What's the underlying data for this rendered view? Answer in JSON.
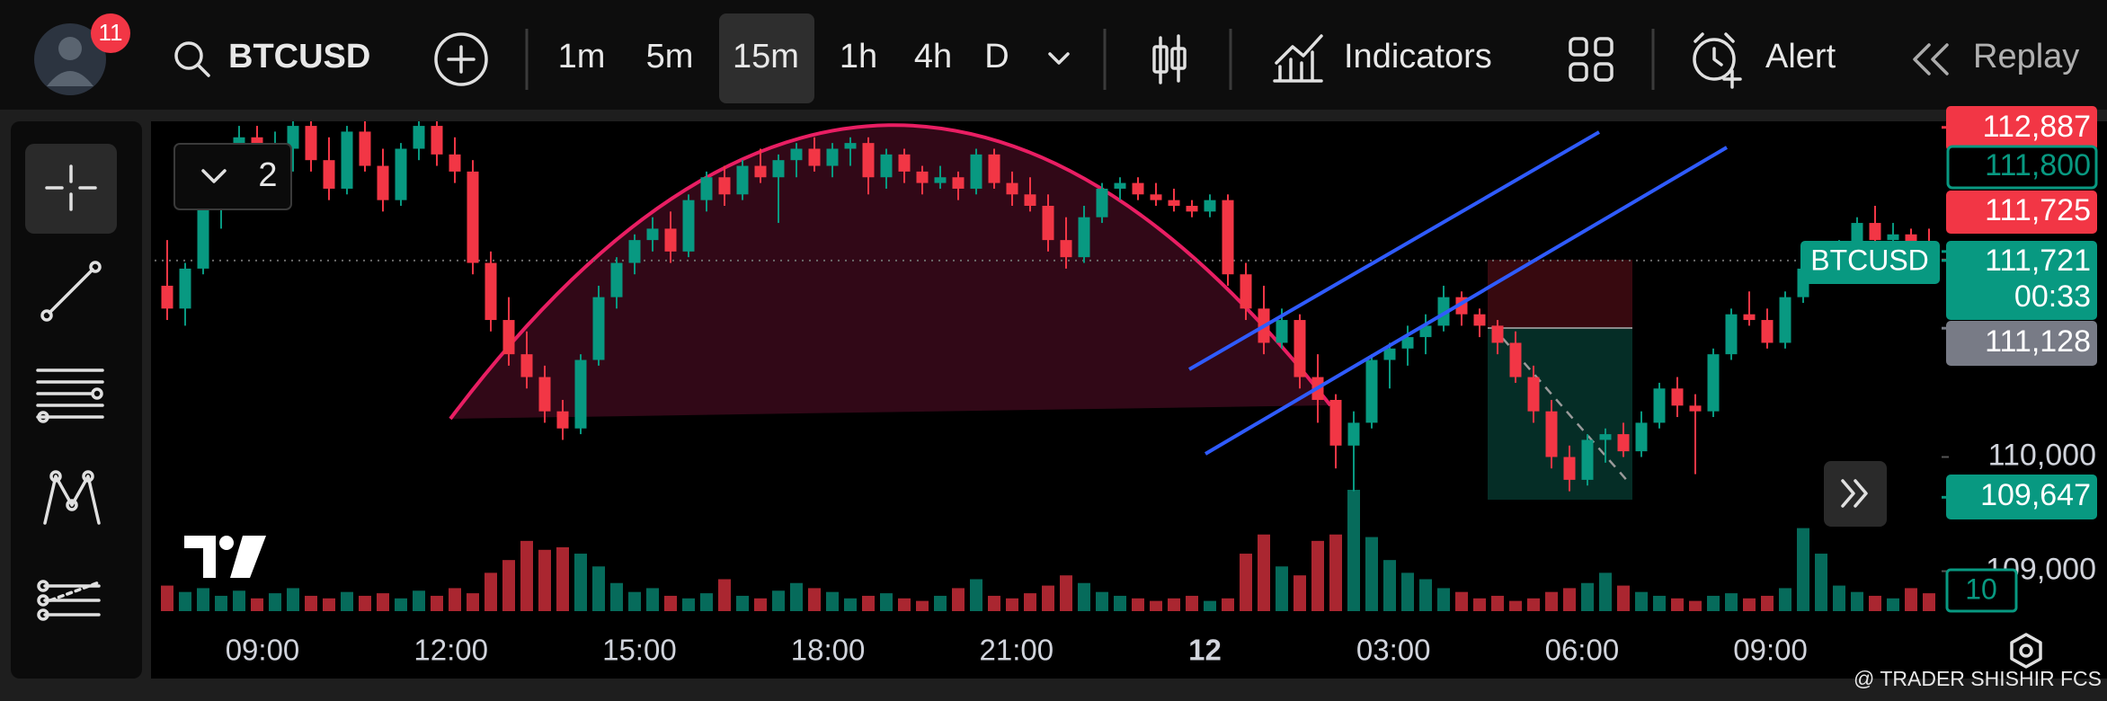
{
  "header": {
    "badge": "11",
    "symbol": "BTCUSD",
    "intervals": [
      "1m",
      "5m",
      "15m",
      "1h",
      "4h",
      "D"
    ],
    "selected_interval": "15m",
    "indicators": "Indicators",
    "alert": "Alert",
    "replay": "Replay"
  },
  "overlay": {
    "legend_count": "2"
  },
  "chart_data": {
    "type": "candlestick",
    "symbol_tag": "BTCUSD",
    "countdown": "00:33",
    "volume_tag": "10",
    "colors": {
      "up": "#089981",
      "down": "#f23645"
    },
    "ylim": [
      108650,
      112940
    ],
    "yticks": [
      {
        "value": 110000,
        "label": "110,000"
      },
      {
        "value": 109000,
        "label": "109,000"
      }
    ],
    "x_labels": [
      "09:00",
      "12:00",
      "15:00",
      "18:00",
      "21:00",
      "12",
      "03:00",
      "06:00",
      "09:00"
    ],
    "price_tags": [
      {
        "value": 112887,
        "label": "112,887",
        "color": "#f23645"
      },
      {
        "value": 111800,
        "label": "111,800",
        "color": "#089981"
      },
      {
        "value": 111725,
        "label": "111,725",
        "color": "#f23645"
      },
      {
        "value": 111721,
        "label": "111,721",
        "color": "#089981"
      },
      {
        "value": 111128,
        "label": "111,128",
        "color": "#787b86"
      },
      {
        "value": 109647,
        "label": "109,647",
        "color": "#089981"
      }
    ],
    "candles": [
      [
        111500,
        111900,
        111200,
        111300
      ],
      [
        111300,
        111700,
        111150,
        111650
      ],
      [
        111650,
        112300,
        111600,
        112200
      ],
      [
        112200,
        112600,
        112000,
        112400
      ],
      [
        112400,
        112900,
        112300,
        112800
      ],
      [
        112800,
        112900,
        112450,
        112550
      ],
      [
        112550,
        112850,
        112300,
        112700
      ],
      [
        112700,
        113000,
        112500,
        112900
      ],
      [
        112900,
        113000,
        112500,
        112600
      ],
      [
        112600,
        112800,
        112250,
        112350
      ],
      [
        112350,
        112900,
        112300,
        112850
      ],
      [
        112850,
        112950,
        112500,
        112550
      ],
      [
        112550,
        112700,
        112150,
        112250
      ],
      [
        112250,
        112750,
        112200,
        112700
      ],
      [
        112700,
        113000,
        112600,
        112900
      ],
      [
        112900,
        112950,
        112550,
        112650
      ],
      [
        112650,
        112800,
        112400,
        112500
      ],
      [
        112500,
        112600,
        111600,
        111700
      ],
      [
        111700,
        111800,
        111100,
        111200
      ],
      [
        111200,
        111400,
        110800,
        110900
      ],
      [
        110900,
        111100,
        110600,
        110700
      ],
      [
        110700,
        110800,
        110300,
        110400
      ],
      [
        110400,
        110500,
        110150,
        110250
      ],
      [
        110250,
        110900,
        110200,
        110850
      ],
      [
        110850,
        111500,
        110800,
        111400
      ],
      [
        111400,
        111750,
        111300,
        111700
      ],
      [
        111700,
        111950,
        111600,
        111900
      ],
      [
        111900,
        112100,
        111800,
        112000
      ],
      [
        112000,
        112150,
        111700,
        111800
      ],
      [
        111800,
        112300,
        111750,
        112250
      ],
      [
        112250,
        112500,
        112150,
        112450
      ],
      [
        112450,
        112550,
        112200,
        112300
      ],
      [
        112300,
        112600,
        112250,
        112550
      ],
      [
        112550,
        112700,
        112400,
        112450
      ],
      [
        112450,
        112650,
        112050,
        112600
      ],
      [
        112600,
        112750,
        112450,
        112700
      ],
      [
        112700,
        112800,
        112500,
        112550
      ],
      [
        112550,
        112750,
        112450,
        112700
      ],
      [
        112700,
        112800,
        112550,
        112750
      ],
      [
        112750,
        112800,
        112300,
        112450
      ],
      [
        112450,
        112700,
        112350,
        112650
      ],
      [
        112650,
        112700,
        112400,
        112500
      ],
      [
        112500,
        112550,
        112300,
        112400
      ],
      [
        112400,
        112550,
        112350,
        112450
      ],
      [
        112450,
        112500,
        112250,
        112350
      ],
      [
        112350,
        112700,
        112300,
        112650
      ],
      [
        112650,
        112700,
        112350,
        112400
      ],
      [
        112400,
        112500,
        112200,
        112300
      ],
      [
        112300,
        112450,
        112150,
        112200
      ],
      [
        112200,
        112300,
        111800,
        111900
      ],
      [
        111900,
        112100,
        111650,
        111750
      ],
      [
        111750,
        112200,
        111700,
        112100
      ],
      [
        112100,
        112400,
        112050,
        112350
      ],
      [
        112350,
        112450,
        112250,
        112400
      ],
      [
        112400,
        112450,
        112250,
        112300
      ],
      [
        112300,
        112400,
        112200,
        112250
      ],
      [
        112250,
        112350,
        112150,
        112200
      ],
      [
        112200,
        112250,
        112100,
        112150
      ],
      [
        112150,
        112300,
        112100,
        112250
      ],
      [
        112250,
        112300,
        111500,
        111600
      ],
      [
        111600,
        111700,
        111200,
        111300
      ],
      [
        111300,
        111500,
        110900,
        111000
      ],
      [
        111000,
        111300,
        110950,
        111200
      ],
      [
        111200,
        111250,
        110600,
        110700
      ],
      [
        110700,
        110900,
        110300,
        110500
      ],
      [
        110500,
        110550,
        109900,
        110100
      ],
      [
        110100,
        110400,
        109700,
        110300
      ],
      [
        110300,
        110900,
        110250,
        110850
      ],
      [
        110850,
        111000,
        110600,
        110950
      ],
      [
        110950,
        111150,
        110800,
        111050
      ],
      [
        111050,
        111250,
        110900,
        111150
      ],
      [
        111150,
        111500,
        111100,
        111400
      ],
      [
        111400,
        111450,
        111150,
        111250
      ],
      [
        111250,
        111300,
        111050,
        111150
      ],
      [
        111150,
        111200,
        110900,
        111000
      ],
      [
        111000,
        111100,
        110650,
        110700
      ],
      [
        110700,
        110800,
        110300,
        110400
      ],
      [
        110400,
        110500,
        109900,
        110000
      ],
      [
        110000,
        110100,
        109700,
        109800
      ],
      [
        109800,
        110200,
        109750,
        110150
      ],
      [
        110150,
        110250,
        109950,
        110200
      ],
      [
        110200,
        110300,
        110000,
        110050
      ],
      [
        110050,
        110400,
        110000,
        110300
      ],
      [
        110300,
        110650,
        110250,
        110600
      ],
      [
        110600,
        110700,
        110350,
        110450
      ],
      [
        110450,
        110550,
        109850,
        110400
      ],
      [
        110400,
        110950,
        110350,
        110900
      ],
      [
        110900,
        111300,
        110850,
        111250
      ],
      [
        111250,
        111450,
        111150,
        111200
      ],
      [
        111200,
        111300,
        110950,
        111000
      ],
      [
        111000,
        111450,
        110950,
        111400
      ],
      [
        111400,
        111700,
        111350,
        111650
      ],
      [
        111650,
        111850,
        111600,
        111750
      ],
      [
        111750,
        111900,
        111650,
        111850
      ],
      [
        111850,
        112100,
        111800,
        112050
      ],
      [
        112050,
        112200,
        111850,
        111900
      ],
      [
        111900,
        112050,
        111750,
        111950
      ],
      [
        111950,
        112000,
        111750,
        111850
      ],
      [
        111850,
        112000,
        111650,
        111721
      ]
    ],
    "volumes": [
      20,
      15,
      18,
      12,
      16,
      10,
      14,
      18,
      12,
      10,
      15,
      12,
      14,
      10,
      16,
      12,
      18,
      14,
      30,
      40,
      55,
      48,
      50,
      45,
      35,
      22,
      15,
      18,
      12,
      10,
      14,
      25,
      12,
      10,
      16,
      22,
      18,
      15,
      10,
      12,
      14,
      10,
      8,
      12,
      18,
      25,
      12,
      10,
      14,
      20,
      28,
      22,
      15,
      12,
      10,
      8,
      10,
      12,
      8,
      10,
      45,
      60,
      35,
      28,
      55,
      60,
      95,
      58,
      40,
      30,
      25,
      18,
      15,
      10,
      12,
      8,
      10,
      15,
      18,
      22,
      30,
      20,
      15,
      12,
      10,
      8,
      12,
      14,
      10,
      12,
      18,
      65,
      45,
      20,
      15,
      12,
      10,
      18,
      14
    ]
  },
  "watermark": "@ TRADER SHISHIR FCS"
}
